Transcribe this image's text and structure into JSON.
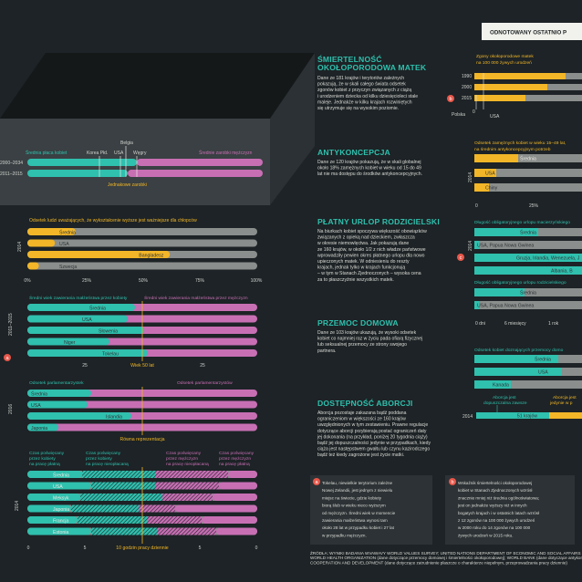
{
  "header": {
    "title": "ODNOTOWANY OSTATNIO P"
  },
  "colors": {
    "bg": "#1d2326",
    "teal": "#2fc0ae",
    "yellow": "#f2b628",
    "pink": "#c86fb4",
    "track": "#8a8e8c",
    "dark": "#2a3033"
  },
  "sections": {
    "mortality": {
      "title_1": "ŚMIERTELNOŚĆ",
      "title_2": "OKOŁOPORODOWA MATEK",
      "text": [
        "Dane ze 181 krajów i terytoriów zależnych",
        "pokazują, że w skali całego świata odsetek",
        "zgonów kobiet z przyczyn związanych z ciążą",
        "i urodzeniem dziecka od kilku dziesięcioleci stale",
        "maleje. Jednakże w kilku krajach rozwiniętych",
        "się utrzymuje się na wysokim poziomie."
      ],
      "legend": [
        "Zgony okołoporodowe matek",
        "na 100 000 żywych urodzeń"
      ],
      "years": [
        "1990",
        "2000",
        "2015"
      ],
      "labels": {
        "poland": "Polska",
        "usa": "USA",
        "zero": "0"
      },
      "marker": "b"
    },
    "pay": {
      "years": [
        "2000–2034",
        "2011–2015"
      ],
      "labels": {
        "women": "Średnia płaca kobiet",
        "men": "Średnie zarobki mężczyzn",
        "korea": "Korea Płd.",
        "belgium": "Belgia",
        "usa": "USA",
        "hungary": "Węgry",
        "equal": "Jednakowe zarobki"
      },
      "mark_00": "00"
    },
    "contraception": {
      "title": "ANTYKONCEPCJA",
      "text": [
        "Dane ze 120 krajów pokazują, że w skali globalnej",
        "około 18% zamężnych kobiet w wieku od 15 do 49",
        "lat nie ma dostępu do środków antykoncepcyjnych."
      ],
      "legend": [
        "Odsetek zamężnych kobiet w wieku 15–49 lat,",
        "na średnim antykoncepcyjnym potrzeb"
      ],
      "year": "2014",
      "bars": [
        "Średnia",
        "USA",
        "Chiny"
      ],
      "ticks": [
        "0",
        "25%"
      ]
    },
    "education": {
      "legend": "Odsetek ludzi uważających, że wykształcenie wyższe jest ważniejsze dla chłopców",
      "year": "2014",
      "bars": [
        "Średnia",
        "USA",
        "Bangladesz",
        "Szwecja"
      ],
      "values": [
        21,
        12,
        62,
        5
      ],
      "ticks": [
        "0%",
        "25%",
        "50%",
        "75%",
        "100%"
      ]
    },
    "leave": {
      "title": "PŁATNY URLOP RODZICIELSKI",
      "text": [
        "Na biurkach kobiet spoczywa większość obowiązków",
        "związanych z opieką nad dzieckiem, zwłaszcza",
        "w okresie niemowlęctwa. Jak pokazują dane",
        "ze 160 krajów, w około 1/2 z nich władze państwowe",
        "wprowadziły pewien okres płatnego urlopu dla nowo",
        "upieczonych matek. W odniesieniu do reszty",
        "krajach, jednak tylko w krajach funkcjonują",
        "– w tym w Stanach Zjednoczonych – wysoka cena",
        "za to płaszczyźnie wszystkich matek."
      ],
      "legend_1": "Długość obligatoryjnego urlopu macierzyńskiego",
      "legend_2": "Długość obligatoryjnego urlopu rodzicielskiego",
      "year": "2014",
      "bars": [
        "Średnia",
        "USA, Papua Nowa Gwinea",
        "Gruzja, Irlandia, Wenezuela, J",
        "Albania, B",
        "Średnia",
        "USA, Papua Nowa Gwinea"
      ],
      "ticks": [
        "0 dni",
        "6 miesięcy",
        "1 rok"
      ],
      "marker": "c"
    },
    "marriage": {
      "legend_women": "Średni wiek zawierania małżeństwa przez kobiety",
      "legend_men": "Średni wiek zawierania małżeństwa przez mężczyzn",
      "year": "2011–2015",
      "bars": [
        "Średnia",
        "USA",
        "Słowenia",
        "Niger",
        "Tokelau"
      ],
      "ticks": [
        "25",
        "Wiek 50 lat",
        "25"
      ],
      "marker": "a"
    },
    "violence": {
      "title": "PRZEMOC DOMOWA",
      "text": [
        "Dane ze 103 krajów ukazują, że wysoki odsetek",
        "kobiet co najmniej raz w życiu pada ofiarą fizycznej",
        "lub seksualnej przemocy ze strony swojego",
        "partnera."
      ],
      "legend": "Odsetek kobiet doznających przemocy domo",
      "bars": [
        "Średnia",
        "USA",
        "Kanada"
      ]
    },
    "parliament": {
      "legend_women": "Odsetek parlamentarzystek",
      "legend_men": "Odsetek parlamentarzystów",
      "year": "2016",
      "bars": [
        "Średnia",
        "USA",
        "Islandia",
        "Japonia"
      ],
      "note": "Równa reprezentacja"
    },
    "abortion": {
      "title": "DOSTĘPNOŚĆ ABORCJI",
      "text": [
        "Aborcja pozostaje zakazana bądź poddana",
        "ograniczeniom w większości ze 160 krajów",
        "uwzględnionych w tym zestawieniu. Prawne regulacje",
        "dotyczące aborcji przybierają postać ograniczeń daty",
        "jej dokonania (na przykład, poniżej 20 tygodnia ciąży)",
        "bądź jej dopuszczalności jedynie w przypadkach, kiedy",
        "ciąża jest następstwem gwałtu lub czynu kazirodczego",
        "bądź też kiedy zagrożone jest życie matki."
      ],
      "legend_allowed": [
        "Aborcja jest",
        "dopuszczalna zawsze"
      ],
      "legend_limited": [
        "Aborcja jest",
        "jedynie w p"
      ],
      "year": "2014",
      "value": "51 krajów"
    },
    "work": {
      "legend": [
        "Czas poświęcany przez kobiety na pracę płatną",
        "Czas poświęcany przez kobiety na pracę nieopłacaną",
        "Czas poświęcany przez mężczyzn na pracę nieopłacaną",
        "Czas poświęcany przez mężczyzn na pracę płatną"
      ],
      "year": "2014",
      "bars": [
        "Średnia",
        "USA",
        "Meksyk",
        "Japonia",
        "Francja",
        "Estonia"
      ],
      "ticks": [
        "0",
        "5",
        "10 godzin pracy dziennie",
        "5",
        "0"
      ]
    }
  },
  "notes": {
    "a": {
      "marker": "a",
      "text": [
        "Tokelau, niewielkie terytorium zależne",
        "Nowej Zelandii, jest jednym z niewielu",
        "miejsc na świecie, gdzie kobiety",
        "biorą ślub w wieku nieco wyższym",
        "od mężczyzn. Średni wiek w momencie",
        "zawierania małżeństwa wynosi tam",
        "około 28 lat w przypadku kobiet i 27 lat",
        "w przypadku mężczyzn."
      ]
    },
    "b": {
      "marker": "b",
      "text": [
        "Wskaźnik śmiertelności okołoporodowej",
        "kobiet w Stanach Zjednoczonych wzrósł",
        "znacznie mniej niż średnia ogólnoświatowa;",
        "jest on jednakże wyższy niż w innych",
        "bogatych krajach i w ostatnich latach wzrósł",
        "z 12 zgonów na 100 000 żywych urodzeń",
        "w 2000 roku do 14 zgonów na 100 000",
        "żywych urodzeń w 2015 roku."
      ]
    }
  },
  "source": [
    "ŹRÓDŁA: WYNIKI BADANIA WVAWAVY WORLD VALUES SURVEY; UNITED NATIONS DEPARTMENT OF ECONOMIC AND SOCIAL AFFAIRS (dane dotyczące wieku zawierania małżeństwa);",
    "WORLD HEALTH ORGANIZATION (dane dotyczące przemocy domowej i śmiertelności okołoporodowej); WORLD BANK (dane dotyczące antykoncepcji); ORGANISATION FOR ECONOMIC",
    "COOPERATION AND DEVELOPMENT (dane dotyczące zatrudnienie płaszcze o charakterze niepełnym, przeprowadzania pracy dziennie)"
  ]
}
